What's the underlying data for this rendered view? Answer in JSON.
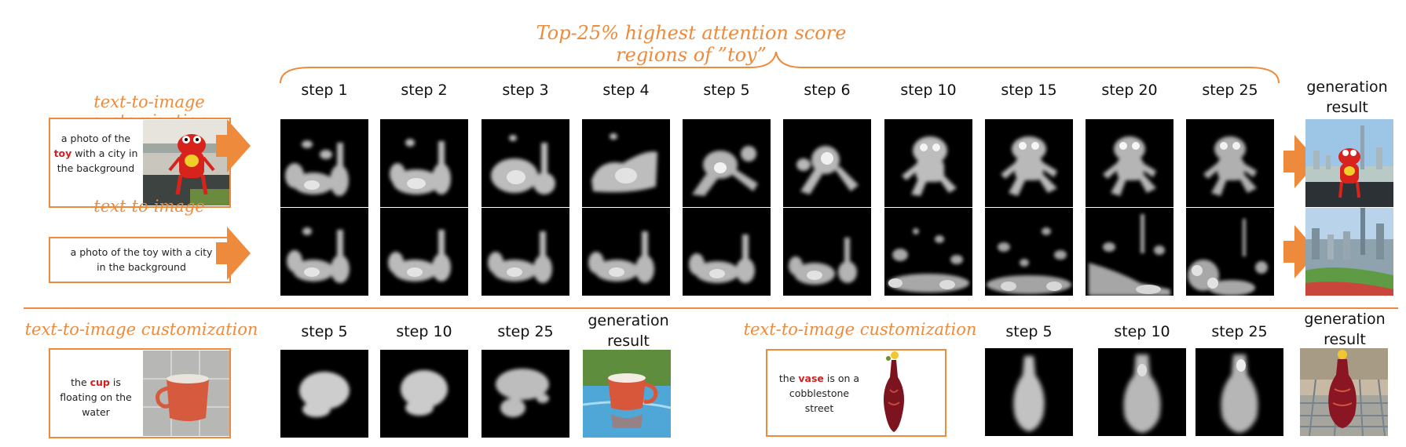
{
  "header": {
    "title": "Top-25% highest attention score regions of ”toy”"
  },
  "top": {
    "steps": [
      "step 1",
      "step 2",
      "step 3",
      "step 4",
      "step 5",
      "step 6",
      "step 10",
      "step 15",
      "step 20",
      "step 25"
    ],
    "result_label_1": "generation",
    "result_label_2": "result",
    "row1": {
      "label": "text-to-image customization",
      "prompt_pre": "a photo of the",
      "prompt_word": "toy",
      "prompt_post": "with a city in the background"
    },
    "row2": {
      "label": "text-to-image",
      "prompt": "a photo of the toy with a city in the background"
    }
  },
  "bottom_left": {
    "label": "text-to-image customization",
    "prompt_pre": "the",
    "prompt_word": "cup",
    "prompt_post": "is floating on the water",
    "steps": [
      "step 5",
      "step 10",
      "step 25"
    ],
    "result_label_1": "generation",
    "result_label_2": "result"
  },
  "bottom_right": {
    "label": "text-to-image customization",
    "prompt_pre": "the",
    "prompt_word": "vase",
    "prompt_post": "is on a cobblestone street",
    "steps": [
      "step 5",
      "step 10",
      "step 25"
    ],
    "result_label_1": "generation",
    "result_label_2": "result"
  },
  "colors": {
    "accent": "#ee8a3c",
    "highlight_word": "#d21f1f"
  }
}
